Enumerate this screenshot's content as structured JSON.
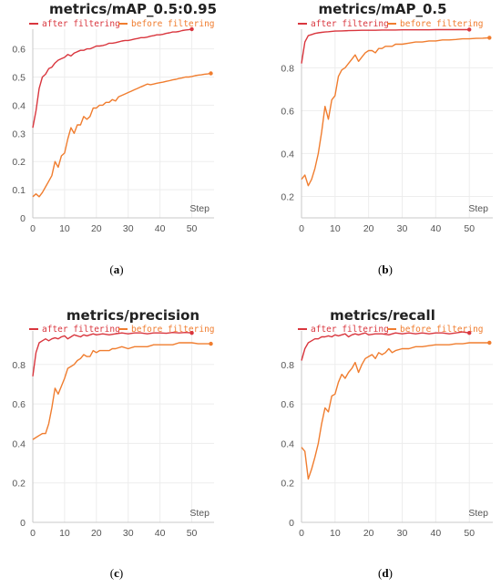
{
  "colors": {
    "after": "#d9363e",
    "before": "#f07d2f"
  },
  "chart_data": [
    {
      "type": "line",
      "title": "metrics/mAP_0.5:0.95",
      "caption": "a",
      "xlabel": "Step",
      "xlim": [
        0,
        57
      ],
      "ylim": [
        0,
        0.67
      ],
      "xticks": [
        0,
        10,
        20,
        30,
        40,
        50
      ],
      "yticks": [
        0,
        0.1,
        0.2,
        0.3,
        0.4,
        0.5,
        0.6
      ],
      "legend": "top",
      "series": [
        {
          "name": "after filtering",
          "color": "#d9363e",
          "x": [
            0,
            1,
            2,
            3,
            4,
            5,
            6,
            7,
            8,
            9,
            10,
            11,
            12,
            13,
            14,
            15,
            16,
            17,
            18,
            19,
            20,
            21,
            22,
            23,
            24,
            25,
            26,
            27,
            28,
            29,
            30,
            31,
            32,
            33,
            34,
            35,
            36,
            37,
            38,
            39,
            40,
            41,
            42,
            43,
            44,
            45,
            46,
            47,
            48,
            49,
            50
          ],
          "y": [
            0.32,
            0.38,
            0.46,
            0.5,
            0.51,
            0.53,
            0.535,
            0.55,
            0.56,
            0.565,
            0.57,
            0.58,
            0.575,
            0.585,
            0.59,
            0.595,
            0.595,
            0.6,
            0.6,
            0.605,
            0.61,
            0.61,
            0.612,
            0.615,
            0.62,
            0.62,
            0.622,
            0.625,
            0.628,
            0.63,
            0.63,
            0.632,
            0.635,
            0.637,
            0.64,
            0.64,
            0.642,
            0.645,
            0.647,
            0.65,
            0.65,
            0.652,
            0.655,
            0.657,
            0.66,
            0.66,
            0.662,
            0.665,
            0.667,
            0.668,
            0.67
          ]
        },
        {
          "name": "before filtering",
          "color": "#f07d2f",
          "x": [
            0,
            1,
            2,
            3,
            4,
            5,
            6,
            7,
            8,
            9,
            10,
            11,
            12,
            13,
            14,
            15,
            16,
            17,
            18,
            19,
            20,
            21,
            22,
            23,
            24,
            25,
            26,
            27,
            28,
            29,
            30,
            31,
            32,
            33,
            34,
            35,
            36,
            37,
            38,
            39,
            40,
            41,
            42,
            43,
            44,
            45,
            46,
            47,
            48,
            49,
            50,
            51,
            52,
            53,
            54,
            55,
            56
          ],
          "y": [
            0.075,
            0.085,
            0.075,
            0.09,
            0.11,
            0.13,
            0.15,
            0.2,
            0.18,
            0.22,
            0.23,
            0.28,
            0.32,
            0.3,
            0.33,
            0.33,
            0.36,
            0.35,
            0.36,
            0.39,
            0.39,
            0.4,
            0.4,
            0.41,
            0.41,
            0.42,
            0.415,
            0.43,
            0.435,
            0.44,
            0.445,
            0.45,
            0.455,
            0.46,
            0.465,
            0.47,
            0.475,
            0.473,
            0.475,
            0.478,
            0.48,
            0.482,
            0.485,
            0.487,
            0.49,
            0.492,
            0.495,
            0.497,
            0.5,
            0.5,
            0.502,
            0.505,
            0.507,
            0.508,
            0.51,
            0.511,
            0.513
          ]
        }
      ]
    },
    {
      "type": "line",
      "title": "metrics/mAP_0.5",
      "caption": "b",
      "xlabel": "Step",
      "xlim": [
        0,
        57
      ],
      "ylim": [
        0.1,
        0.98
      ],
      "xticks": [
        0,
        10,
        20,
        30,
        40,
        50
      ],
      "yticks": [
        0.2,
        0.4,
        0.6,
        0.8
      ],
      "legend": "top",
      "series": [
        {
          "name": "after filtering",
          "color": "#d9363e",
          "x": [
            0,
            1,
            2,
            3,
            4,
            5,
            6,
            7,
            8,
            9,
            10,
            12,
            14,
            16,
            18,
            20,
            22,
            24,
            26,
            28,
            30,
            32,
            34,
            36,
            38,
            40,
            42,
            44,
            46,
            48,
            50
          ],
          "y": [
            0.82,
            0.92,
            0.95,
            0.955,
            0.96,
            0.963,
            0.965,
            0.967,
            0.968,
            0.97,
            0.971,
            0.972,
            0.973,
            0.974,
            0.975,
            0.975,
            0.975,
            0.976,
            0.976,
            0.976,
            0.977,
            0.977,
            0.977,
            0.977,
            0.977,
            0.978,
            0.978,
            0.978,
            0.978,
            0.978,
            0.978
          ]
        },
        {
          "name": "before filtering",
          "color": "#f07d2f",
          "x": [
            0,
            1,
            2,
            3,
            4,
            5,
            6,
            7,
            8,
            9,
            10,
            11,
            12,
            13,
            14,
            15,
            16,
            17,
            18,
            19,
            20,
            21,
            22,
            23,
            24,
            25,
            26,
            27,
            28,
            29,
            30,
            32,
            34,
            36,
            38,
            40,
            42,
            44,
            46,
            48,
            50,
            52,
            54,
            56
          ],
          "y": [
            0.28,
            0.3,
            0.25,
            0.28,
            0.33,
            0.4,
            0.5,
            0.62,
            0.56,
            0.65,
            0.67,
            0.76,
            0.79,
            0.8,
            0.82,
            0.84,
            0.86,
            0.83,
            0.85,
            0.87,
            0.88,
            0.88,
            0.87,
            0.89,
            0.89,
            0.9,
            0.9,
            0.9,
            0.91,
            0.91,
            0.91,
            0.915,
            0.92,
            0.92,
            0.925,
            0.925,
            0.93,
            0.93,
            0.932,
            0.935,
            0.935,
            0.937,
            0.938,
            0.94
          ]
        }
      ]
    },
    {
      "type": "line",
      "title": "metrics/precision",
      "caption": "c",
      "xlabel": "Step",
      "xlim": [
        0,
        57
      ],
      "ylim": [
        0,
        0.97
      ],
      "xticks": [
        0,
        10,
        20,
        30,
        40,
        50
      ],
      "yticks": [
        0,
        0.2,
        0.4,
        0.6,
        0.8
      ],
      "legend": "top",
      "series": [
        {
          "name": "after filtering",
          "color": "#d9363e",
          "x": [
            0,
            1,
            2,
            3,
            4,
            5,
            6,
            7,
            8,
            9,
            10,
            11,
            12,
            13,
            14,
            15,
            16,
            17,
            18,
            19,
            20,
            22,
            24,
            26,
            28,
            30,
            32,
            34,
            36,
            38,
            40,
            42,
            44,
            46,
            48,
            50
          ],
          "y": [
            0.74,
            0.86,
            0.91,
            0.92,
            0.93,
            0.92,
            0.93,
            0.935,
            0.93,
            0.94,
            0.945,
            0.93,
            0.94,
            0.95,
            0.945,
            0.94,
            0.95,
            0.945,
            0.95,
            0.955,
            0.95,
            0.955,
            0.95,
            0.955,
            0.96,
            0.955,
            0.96,
            0.96,
            0.955,
            0.96,
            0.96,
            0.958,
            0.962,
            0.96,
            0.962,
            0.96
          ]
        },
        {
          "name": "before filtering",
          "color": "#f07d2f",
          "x": [
            0,
            1,
            2,
            3,
            4,
            5,
            6,
            7,
            8,
            9,
            10,
            11,
            12,
            13,
            14,
            15,
            16,
            17,
            18,
            19,
            20,
            21,
            22,
            23,
            24,
            25,
            26,
            28,
            30,
            32,
            34,
            36,
            38,
            40,
            42,
            44,
            46,
            48,
            50,
            52,
            54,
            56
          ],
          "y": [
            0.42,
            0.43,
            0.44,
            0.45,
            0.45,
            0.5,
            0.58,
            0.68,
            0.65,
            0.69,
            0.73,
            0.78,
            0.79,
            0.8,
            0.82,
            0.83,
            0.85,
            0.84,
            0.84,
            0.87,
            0.86,
            0.87,
            0.87,
            0.87,
            0.87,
            0.88,
            0.88,
            0.89,
            0.88,
            0.89,
            0.89,
            0.89,
            0.9,
            0.9,
            0.9,
            0.9,
            0.91,
            0.91,
            0.91,
            0.905,
            0.905,
            0.905
          ]
        }
      ]
    },
    {
      "type": "line",
      "title": "metrics/recall",
      "caption": "d",
      "xlabel": "Step",
      "xlim": [
        0,
        57
      ],
      "ylim": [
        0,
        0.97
      ],
      "xticks": [
        0,
        10,
        20,
        30,
        40,
        50
      ],
      "yticks": [
        0,
        0.2,
        0.4,
        0.6,
        0.8
      ],
      "legend": "top",
      "series": [
        {
          "name": "after filtering",
          "color": "#d9363e",
          "x": [
            0,
            1,
            2,
            3,
            4,
            5,
            6,
            7,
            8,
            9,
            10,
            11,
            12,
            13,
            14,
            15,
            16,
            17,
            18,
            19,
            20,
            22,
            24,
            26,
            28,
            30,
            32,
            34,
            36,
            38,
            40,
            42,
            44,
            46,
            48,
            50
          ],
          "y": [
            0.82,
            0.88,
            0.91,
            0.92,
            0.93,
            0.93,
            0.94,
            0.94,
            0.945,
            0.94,
            0.95,
            0.945,
            0.95,
            0.955,
            0.94,
            0.95,
            0.955,
            0.95,
            0.955,
            0.96,
            0.95,
            0.955,
            0.955,
            0.95,
            0.96,
            0.955,
            0.96,
            0.955,
            0.96,
            0.955,
            0.96,
            0.96,
            0.955,
            0.96,
            0.965,
            0.96
          ]
        },
        {
          "name": "before filtering",
          "color": "#f07d2f",
          "x": [
            0,
            1,
            2,
            3,
            4,
            5,
            6,
            7,
            8,
            9,
            10,
            11,
            12,
            13,
            14,
            15,
            16,
            17,
            18,
            19,
            20,
            21,
            22,
            23,
            24,
            25,
            26,
            27,
            28,
            30,
            32,
            34,
            36,
            38,
            40,
            42,
            44,
            46,
            48,
            50,
            52,
            54,
            56
          ],
          "y": [
            0.38,
            0.36,
            0.22,
            0.27,
            0.33,
            0.4,
            0.5,
            0.58,
            0.56,
            0.64,
            0.65,
            0.71,
            0.75,
            0.73,
            0.76,
            0.78,
            0.81,
            0.76,
            0.8,
            0.83,
            0.84,
            0.85,
            0.83,
            0.86,
            0.85,
            0.86,
            0.88,
            0.86,
            0.87,
            0.88,
            0.88,
            0.89,
            0.89,
            0.895,
            0.9,
            0.9,
            0.9,
            0.905,
            0.905,
            0.91,
            0.91,
            0.91,
            0.91
          ]
        }
      ]
    }
  ]
}
